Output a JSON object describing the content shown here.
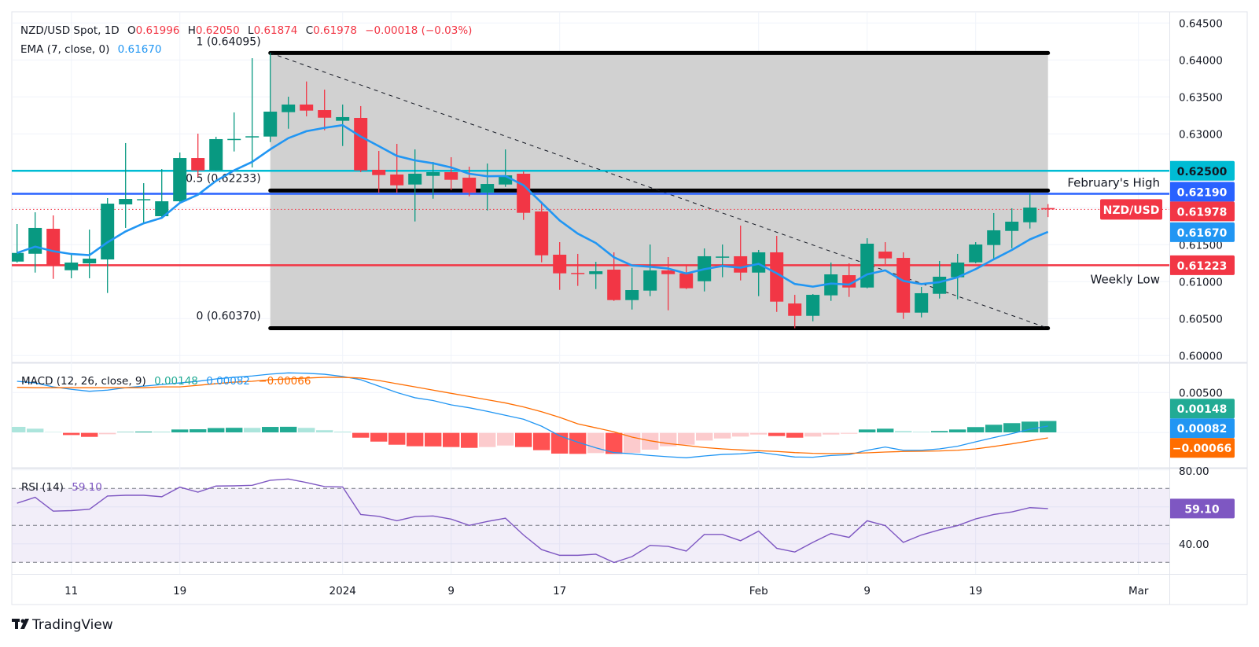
{
  "header": {
    "title": "NZD/USD Spot, 1D",
    "o_label": "O",
    "o_value": "0.61996",
    "h_label": "H",
    "h_value": "0.62050",
    "l_label": "L",
    "l_value": "0.61874",
    "c_label": "C",
    "c_value": "0.61978",
    "change": "−0.00018 (−0.03%)",
    "value_color": "#f23645"
  },
  "ema_legend": {
    "label": "EMA (7, close, 0)",
    "value": "0.61670",
    "color": "#2196f3"
  },
  "macd_legend": {
    "label": "MACD (12, 26, close, 9)",
    "hist_value": "0.00148",
    "macd_value": "0.00082",
    "signal_value": "−0.00066",
    "hist_color": "#22ab94",
    "macd_color": "#2196f3",
    "signal_color": "#ff6d00"
  },
  "rsi_legend": {
    "label": "RSI (14)",
    "value": "59.10",
    "color": "#7e57c2"
  },
  "fib": {
    "high_label": "1 (0.64095)",
    "high": 0.64095,
    "mid_label": "0.5 (0.62233)",
    "mid": 0.62233,
    "low_label": "0 (0.60370)",
    "low": 0.6037,
    "start_date": "2023-12-26",
    "end_date": "2024-02-23",
    "fill": "#d1d1d1"
  },
  "levels": [
    {
      "price": 0.625,
      "color": "#00bcd4",
      "label": ""
    },
    {
      "price": 0.6219,
      "color": "#2962ff",
      "label": "February's High",
      "label_side": "above"
    },
    {
      "price": 0.61223,
      "color": "#f23645",
      "label": "Weekly Low",
      "label_side": "below"
    }
  ],
  "current_price": {
    "symbol_tag": "NZD/USD",
    "price": 0.61978,
    "color": "#f23645"
  },
  "price_axis": {
    "ticks": [
      "0.64500",
      "0.64000",
      "0.63500",
      "0.63000",
      "0.61500",
      "0.61000",
      "0.60500",
      "0.60000"
    ],
    "tags": [
      {
        "text": "0.62500",
        "bg": "#00bcd4",
        "fg": "#131722"
      },
      {
        "text": "0.62190",
        "bg": "#2962ff",
        "fg": "#ffffff"
      },
      {
        "text": "0.61978",
        "bg": "#f23645",
        "fg": "#ffffff"
      },
      {
        "text": "0.61670",
        "bg": "#2196f3",
        "fg": "#ffffff"
      },
      {
        "text": "0.61223",
        "bg": "#f23645",
        "fg": "#ffffff"
      }
    ]
  },
  "macd_axis": {
    "ticks": [
      "0.00500"
    ],
    "tags": [
      {
        "text": "0.00148",
        "value": 0.00148,
        "bg": "#22ab94",
        "fg": "#ffffff"
      },
      {
        "text": "0.00082",
        "value": 0.00082,
        "bg": "#2196f3",
        "fg": "#ffffff"
      },
      {
        "text": "−0.00066",
        "value": -0.00066,
        "bg": "#ff6d00",
        "fg": "#ffffff"
      }
    ]
  },
  "rsi_axis": {
    "ticks": [
      "80.00",
      "40.00"
    ],
    "tags": [
      {
        "text": "59.10",
        "value": 59.1,
        "bg": "#7e57c2",
        "fg": "#ffffff"
      }
    ]
  },
  "time_axis": [
    {
      "label": "11",
      "date": "2023-12-11"
    },
    {
      "label": "19",
      "date": "2023-12-19"
    },
    {
      "label": "2024",
      "date": "2024-01-01"
    },
    {
      "label": "9",
      "date": "2024-01-09"
    },
    {
      "label": "17",
      "date": "2024-01-17"
    },
    {
      "label": "Feb",
      "date": "2024-02-01"
    },
    {
      "label": "9",
      "date": "2024-02-09"
    },
    {
      "label": "19",
      "date": "2024-02-19"
    },
    {
      "label": "Mar",
      "date": "2024-03-01"
    }
  ],
  "branding": {
    "logo_text": "TradingView"
  },
  "chart_data": {
    "type": "candlestick",
    "symbol": "NZD/USD",
    "interval": "1D",
    "ylim": [
      0.6,
      0.645
    ],
    "grid": true,
    "up_color": "#089981",
    "down_color": "#f23645",
    "candles": [
      [
        "2023-12-06",
        0.61272,
        0.6178,
        0.61259,
        0.61389
      ],
      [
        "2023-12-07",
        0.61378,
        0.61939,
        0.61123,
        0.61727
      ],
      [
        "2023-12-08",
        0.61716,
        0.61897,
        0.61038,
        0.6123
      ],
      [
        "2023-12-11",
        0.61155,
        0.61376,
        0.61046,
        0.61259
      ],
      [
        "2023-12-12",
        0.61248,
        0.61705,
        0.61046,
        0.61312
      ],
      [
        "2023-12-13",
        0.61301,
        0.62131,
        0.60847,
        0.62056
      ],
      [
        "2023-12-14",
        0.62046,
        0.62876,
        0.61727,
        0.6212
      ],
      [
        "2023-12-15",
        0.62115,
        0.62333,
        0.61801,
        0.62117
      ],
      [
        "2023-12-18",
        0.61886,
        0.62524,
        0.61854,
        0.62088
      ],
      [
        "2023-12-19",
        0.62088,
        0.62748,
        0.6207,
        0.62673
      ],
      [
        "2023-12-20",
        0.62673,
        0.63003,
        0.62418,
        0.62506
      ],
      [
        "2023-12-21",
        0.62506,
        0.62961,
        0.625,
        0.62929
      ],
      [
        "2023-12-22",
        0.6293,
        0.6329,
        0.62762,
        0.62932
      ],
      [
        "2023-12-25",
        0.62965,
        0.64024,
        0.62546,
        0.62968
      ],
      [
        "2023-12-26",
        0.62964,
        0.64095,
        0.62889,
        0.63301
      ],
      [
        "2023-12-27",
        0.63294,
        0.63503,
        0.6307,
        0.63397
      ],
      [
        "2023-12-28",
        0.63397,
        0.63709,
        0.63237,
        0.63315
      ],
      [
        "2023-12-29",
        0.63322,
        0.63599,
        0.63049,
        0.63219
      ],
      [
        "2024-01-01",
        0.63177,
        0.63397,
        0.62836,
        0.63227
      ],
      [
        "2024-01-02",
        0.63216,
        0.63376,
        0.62482,
        0.62506
      ],
      [
        "2024-01-03",
        0.62514,
        0.62769,
        0.62205,
        0.62443
      ],
      [
        "2024-01-04",
        0.6245,
        0.62865,
        0.62205,
        0.62304
      ],
      [
        "2024-01-05",
        0.62315,
        0.6279,
        0.61815,
        0.62461
      ],
      [
        "2024-01-08",
        0.62432,
        0.6262,
        0.62123,
        0.62482
      ],
      [
        "2024-01-09",
        0.62482,
        0.62684,
        0.6224,
        0.62379
      ],
      [
        "2024-01-10",
        0.62407,
        0.62556,
        0.62155,
        0.62205
      ],
      [
        "2024-01-11",
        0.62205,
        0.62599,
        0.61964,
        0.62322
      ],
      [
        "2024-01-12",
        0.62315,
        0.6279,
        0.62283,
        0.62439
      ],
      [
        "2024-01-15",
        0.62461,
        0.62493,
        0.61836,
        0.61932
      ],
      [
        "2024-01-16",
        0.6195,
        0.62081,
        0.61262,
        0.61357
      ],
      [
        "2024-01-17",
        0.61365,
        0.61535,
        0.60889,
        0.61113
      ],
      [
        "2024-01-18",
        0.61118,
        0.61376,
        0.60943,
        0.61114
      ],
      [
        "2024-01-19",
        0.61102,
        0.61269,
        0.609,
        0.61141
      ],
      [
        "2024-01-22",
        0.61163,
        0.61397,
        0.6074,
        0.60751
      ],
      [
        "2024-01-23",
        0.60751,
        0.61187,
        0.60623,
        0.60886
      ],
      [
        "2024-01-24",
        0.60879,
        0.61503,
        0.60804,
        0.61152
      ],
      [
        "2024-01-25",
        0.61152,
        0.61333,
        0.60613,
        0.61102
      ],
      [
        "2024-01-26",
        0.61113,
        0.61216,
        0.609,
        0.60911
      ],
      [
        "2024-01-29",
        0.61006,
        0.6145,
        0.60868,
        0.61344
      ],
      [
        "2024-01-30",
        0.61338,
        0.61503,
        0.6106,
        0.6134
      ],
      [
        "2024-01-31",
        0.61344,
        0.61759,
        0.61017,
        0.61123
      ],
      [
        "2024-02-01",
        0.61123,
        0.61429,
        0.60804,
        0.61397
      ],
      [
        "2024-02-02",
        0.61397,
        0.6162,
        0.60591,
        0.6073
      ],
      [
        "2024-02-05",
        0.60705,
        0.60822,
        0.6037,
        0.60538
      ],
      [
        "2024-02-06",
        0.60538,
        0.60833,
        0.60464,
        0.60822
      ],
      [
        "2024-02-07",
        0.60815,
        0.61259,
        0.6074,
        0.61099
      ],
      [
        "2024-02-08",
        0.61088,
        0.61248,
        0.60794,
        0.60921
      ],
      [
        "2024-02-09",
        0.60921,
        0.61588,
        0.6091,
        0.61514
      ],
      [
        "2024-02-12",
        0.61407,
        0.61535,
        0.61237,
        0.61315
      ],
      [
        "2024-02-13",
        0.61322,
        0.61397,
        0.60496,
        0.60581
      ],
      [
        "2024-02-14",
        0.60581,
        0.60929,
        0.60517,
        0.60844
      ],
      [
        "2024-02-15",
        0.60836,
        0.6128,
        0.60772,
        0.61067
      ],
      [
        "2024-02-16",
        0.6106,
        0.61376,
        0.60762,
        0.61259
      ],
      [
        "2024-02-19",
        0.61262,
        0.61535,
        0.6125,
        0.61503
      ],
      [
        "2024-02-20",
        0.61496,
        0.61929,
        0.61304,
        0.61695
      ],
      [
        "2024-02-21",
        0.61687,
        0.61993,
        0.61453,
        0.61812
      ],
      [
        "2024-02-22",
        0.61804,
        0.62195,
        0.61719,
        0.62003
      ],
      [
        "2024-02-23",
        0.61996,
        0.6205,
        0.61874,
        0.61978
      ]
    ],
    "ema_period": 7,
    "macd": {
      "hist": [
        0.00075,
        0.00052,
        0.0001,
        -0.00033,
        -0.00056,
        -0.00023,
        0.0001,
        0.00016,
        0.00016,
        0.00042,
        0.00045,
        0.0006,
        0.00063,
        0.00062,
        0.00074,
        0.00076,
        0.00062,
        0.00033,
        0.00015,
        -0.00066,
        -0.00115,
        -0.00154,
        -0.00173,
        -0.00175,
        -0.00183,
        -0.00193,
        -0.00183,
        -0.00164,
        -0.00183,
        -0.00222,
        -0.00265,
        -0.00268,
        -0.00258,
        -0.00268,
        -0.00255,
        -0.00216,
        -0.00173,
        -0.00154,
        -0.00102,
        -0.00076,
        -0.00052,
        -0.00027,
        -0.00046,
        -0.00066,
        -0.00052,
        -0.00027,
        -0.00017,
        0.00042,
        0.00052,
        0.00023,
        0.00013,
        0.00023,
        0.00042,
        0.00072,
        0.00101,
        0.00121,
        0.0014,
        0.00148
      ],
      "macd": [
        0.0064,
        0.0062,
        0.0057,
        0.0054,
        0.00516,
        0.0053,
        0.0056,
        0.0058,
        0.006,
        0.0062,
        0.0064,
        0.0067,
        0.0069,
        0.00706,
        0.0073,
        0.00745,
        0.0074,
        0.00728,
        0.007,
        0.0066,
        0.0058,
        0.005,
        0.00435,
        0.004,
        0.00346,
        0.0031,
        0.00265,
        0.00216,
        0.00167,
        0.0008,
        -0.0004,
        -0.0012,
        -0.0019,
        -0.00249,
        -0.00265,
        -0.00285,
        -0.00301,
        -0.00314,
        -0.00291,
        -0.00272,
        -0.00265,
        -0.00245,
        -0.00275,
        -0.00304,
        -0.00307,
        -0.00285,
        -0.00275,
        -0.0022,
        -0.0018,
        -0.0022,
        -0.0022,
        -0.00203,
        -0.0017,
        -0.00115,
        -0.00062,
        -0.00013,
        0.00042,
        0.00082
      ],
      "signal": [
        0.00565,
        0.0056,
        0.0056,
        0.0056,
        0.0056,
        0.0056,
        0.0056,
        0.0056,
        0.0057,
        0.0057,
        0.0059,
        0.0061,
        0.0063,
        0.0064,
        0.0066,
        0.0067,
        0.0068,
        0.0069,
        0.0069,
        0.0068,
        0.0065,
        0.0061,
        0.0057,
        0.0053,
        0.0049,
        0.0045,
        0.0041,
        0.0037,
        0.0032,
        0.0026,
        0.0019,
        0.0011,
        0.0006,
        0.0001,
        -0.00056,
        -0.00102,
        -0.00137,
        -0.0016,
        -0.00186,
        -0.00203,
        -0.00216,
        -0.00226,
        -0.00235,
        -0.00249,
        -0.00258,
        -0.00262,
        -0.00258,
        -0.00252,
        -0.00242,
        -0.00235,
        -0.00232,
        -0.00229,
        -0.0022,
        -0.00203,
        -0.00173,
        -0.0014,
        -0.00102,
        -0.00066
      ],
      "ylim": [
        -0.0045,
        0.009
      ]
    },
    "rsi": {
      "values": [
        62.0,
        65.2,
        57.7,
        58.0,
        58.7,
        65.9,
        66.3,
        66.3,
        65.5,
        70.7,
        68.0,
        71.3,
        71.4,
        71.7,
        74.4,
        75.1,
        73.2,
        71.0,
        70.8,
        55.9,
        54.9,
        52.5,
        54.8,
        55.1,
        53.4,
        50.0,
        52.1,
        53.9,
        44.8,
        36.9,
        33.8,
        33.8,
        34.4,
        29.9,
        33.1,
        39.2,
        38.6,
        36.1,
        45.1,
        45.1,
        41.7,
        46.9,
        37.6,
        35.6,
        40.8,
        45.6,
        43.5,
        52.5,
        49.9,
        40.8,
        44.8,
        47.6,
        49.9,
        53.5,
        55.9,
        57.3,
        59.6,
        59.1
      ],
      "bands": [
        70,
        50,
        30
      ]
    }
  }
}
